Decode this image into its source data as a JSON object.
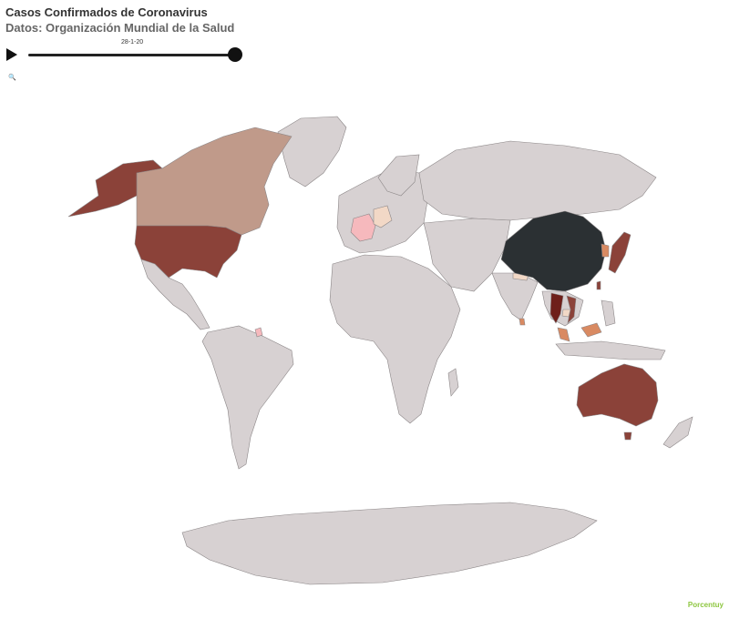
{
  "header": {
    "title": "Casos Confirmados de Coronavirus",
    "subtitle": "Datos: Organización Mundial de la Salud"
  },
  "timeline": {
    "current_date": "28-1-20",
    "play_icon": "play-icon",
    "progress": 1.0
  },
  "search": {
    "icon": "search-icon"
  },
  "brand": {
    "label": "Porcentuy"
  },
  "colors": {
    "no_data": "#d7d1d2",
    "border": "#8b8687",
    "highest": "#2b3033",
    "high": "#8b4239",
    "dark_red": "#6e1f1a",
    "mid": "#c09a8a",
    "low": "#f2d8c6",
    "pink": "#f6b9bd",
    "orange": "#d98a62"
  },
  "map": {
    "countries": [
      {
        "name": "China",
        "level": "highest"
      },
      {
        "name": "United States",
        "level": "high"
      },
      {
        "name": "Canada",
        "level": "mid"
      },
      {
        "name": "Australia",
        "level": "high"
      },
      {
        "name": "Japan",
        "level": "high"
      },
      {
        "name": "Thailand",
        "level": "dark_red"
      },
      {
        "name": "Vietnam",
        "level": "high"
      },
      {
        "name": "Malaysia",
        "level": "orange"
      },
      {
        "name": "Singapore",
        "level": "orange"
      },
      {
        "name": "Cambodia",
        "level": "low"
      },
      {
        "name": "Nepal",
        "level": "low"
      },
      {
        "name": "Sri Lanka",
        "level": "orange"
      },
      {
        "name": "South Korea",
        "level": "orange"
      },
      {
        "name": "Taiwan",
        "level": "high"
      },
      {
        "name": "France",
        "level": "pink"
      },
      {
        "name": "Germany",
        "level": "low"
      }
    ]
  }
}
